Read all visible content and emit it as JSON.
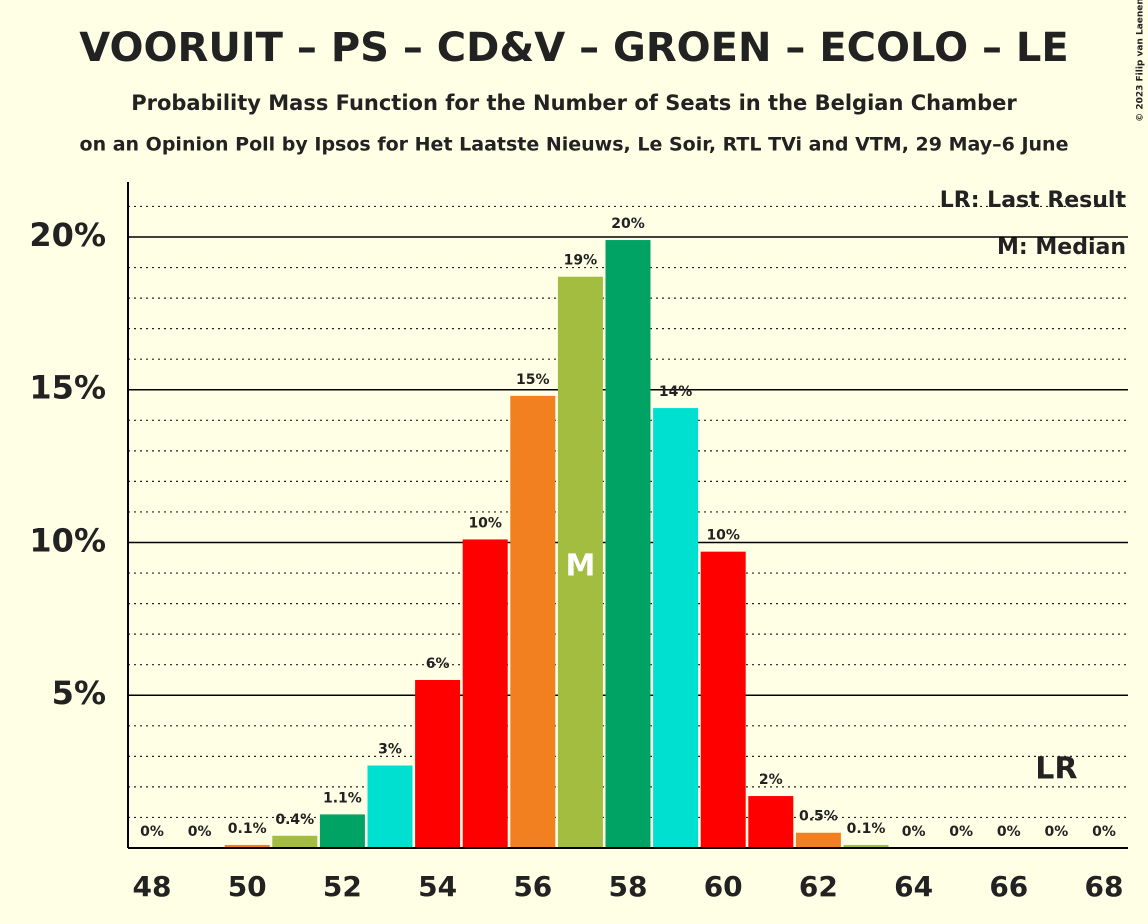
{
  "chart_data": {
    "type": "bar",
    "title": "VOORUIT – PS – CD&V – GROEN – ECOLO – LE",
    "subtitle": "Probability Mass Function for the Number of Seats in the Belgian Chamber",
    "source": "on an Opinion Poll by Ipsos for Het Laatste Nieuws, Le Soir, RTL TVi and VTM, 29 May–6 June",
    "copyright": "© 2023 Filip van Laenen",
    "categories": [
      "48",
      null,
      "50",
      null,
      "52",
      null,
      "54",
      null,
      "56",
      null,
      "58",
      null,
      "60",
      null,
      "62",
      null,
      "64",
      null,
      "66",
      null,
      "68"
    ],
    "values": [
      0,
      0,
      0.1,
      0.4,
      1.1,
      2.7,
      5.5,
      10.1,
      14.8,
      18.7,
      19.9,
      14.4,
      9.7,
      1.7,
      0.5,
      0.1,
      0,
      0,
      0,
      0,
      0
    ],
    "value_labels": [
      "0%",
      "0%",
      "0.1%",
      "0.4%",
      "1.1%",
      "3%",
      "6%",
      "10%",
      "15%",
      "19%",
      "20%",
      "14%",
      "10%",
      "2%",
      "0.5%",
      "0.1%",
      "0%",
      "0%",
      "0%",
      "0%",
      "0%"
    ],
    "colors": [
      "#ff0000",
      "#ff0000",
      "#f28021",
      "#a2bd40",
      "#00a364",
      "#00e0d0",
      "#ff0000",
      "#ff0000",
      "#f28021",
      "#a2bd40",
      "#00a364",
      "#00e0d0",
      "#ff0000",
      "#ff0000",
      "#f28021",
      "#a2bd40",
      "#00a364",
      "#00e0d0",
      "#ff0000",
      "#ff0000",
      "#f28021"
    ],
    "ylim": [
      0,
      21.8
    ],
    "yticks": [
      {
        "value": 5,
        "label": "5%"
      },
      {
        "value": 10,
        "label": "10%"
      },
      {
        "value": 15,
        "label": "15%"
      },
      {
        "value": 20,
        "label": "20%"
      }
    ],
    "minor_yticks": [
      1,
      2,
      3,
      4,
      6,
      7,
      8,
      9,
      11,
      12,
      13,
      14,
      16,
      17,
      18,
      19,
      21
    ],
    "median_index": 9,
    "median_label": "M",
    "last_result_index": 19,
    "last_result_label": "LR",
    "legend": [
      "LR: Last Result",
      "M: Median"
    ]
  }
}
